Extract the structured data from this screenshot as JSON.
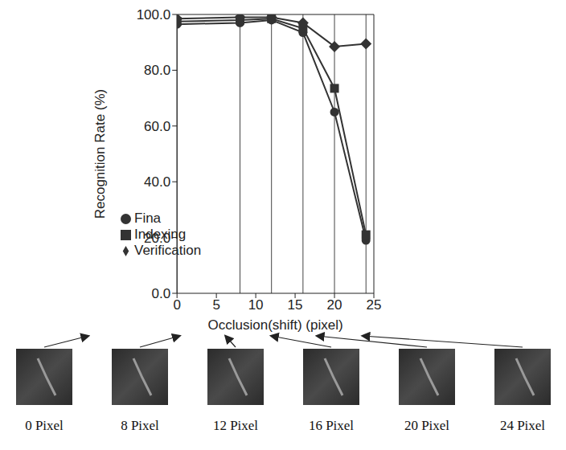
{
  "chart_data": {
    "type": "line",
    "x_label": "Occlusion(shift) (pixel)",
    "y_label": "Recognition Rate (%)",
    "x": [
      0,
      8,
      12,
      16,
      20,
      24
    ],
    "series": [
      {
        "name": "Fina",
        "marker": "circle",
        "color": "#333333",
        "values": [
          96.5,
          97,
          98,
          93.5,
          65,
          19
        ]
      },
      {
        "name": "Indexing",
        "marker": "square",
        "color": "#333333",
        "values": [
          97.5,
          98,
          98.5,
          95,
          73.5,
          21
        ]
      },
      {
        "name": "Verification",
        "marker": "diamond",
        "color": "#333333",
        "values": [
          98.5,
          99,
          99,
          97,
          88.5,
          89.5
        ]
      }
    ],
    "xlim": [
      0,
      25
    ],
    "ylim": [
      0,
      100
    ],
    "xticks": [
      0,
      5,
      10,
      15,
      20,
      25
    ],
    "yticks": [
      {
        "value": 0,
        "label": "0.0"
      },
      {
        "value": 20,
        "label": "20.0"
      },
      {
        "value": 40,
        "label": "40.0"
      },
      {
        "value": 60,
        "label": "60.0"
      },
      {
        "value": 80,
        "label": "80.0"
      },
      {
        "value": 100,
        "label": "100.0"
      }
    ],
    "grid": false,
    "legend": "center left",
    "thumbnail_labels": [
      "0 Pixel",
      "8 Pixel",
      "12 Pixel",
      "16 Pixel",
      "20 Pixel",
      "24 Pixel"
    ]
  }
}
